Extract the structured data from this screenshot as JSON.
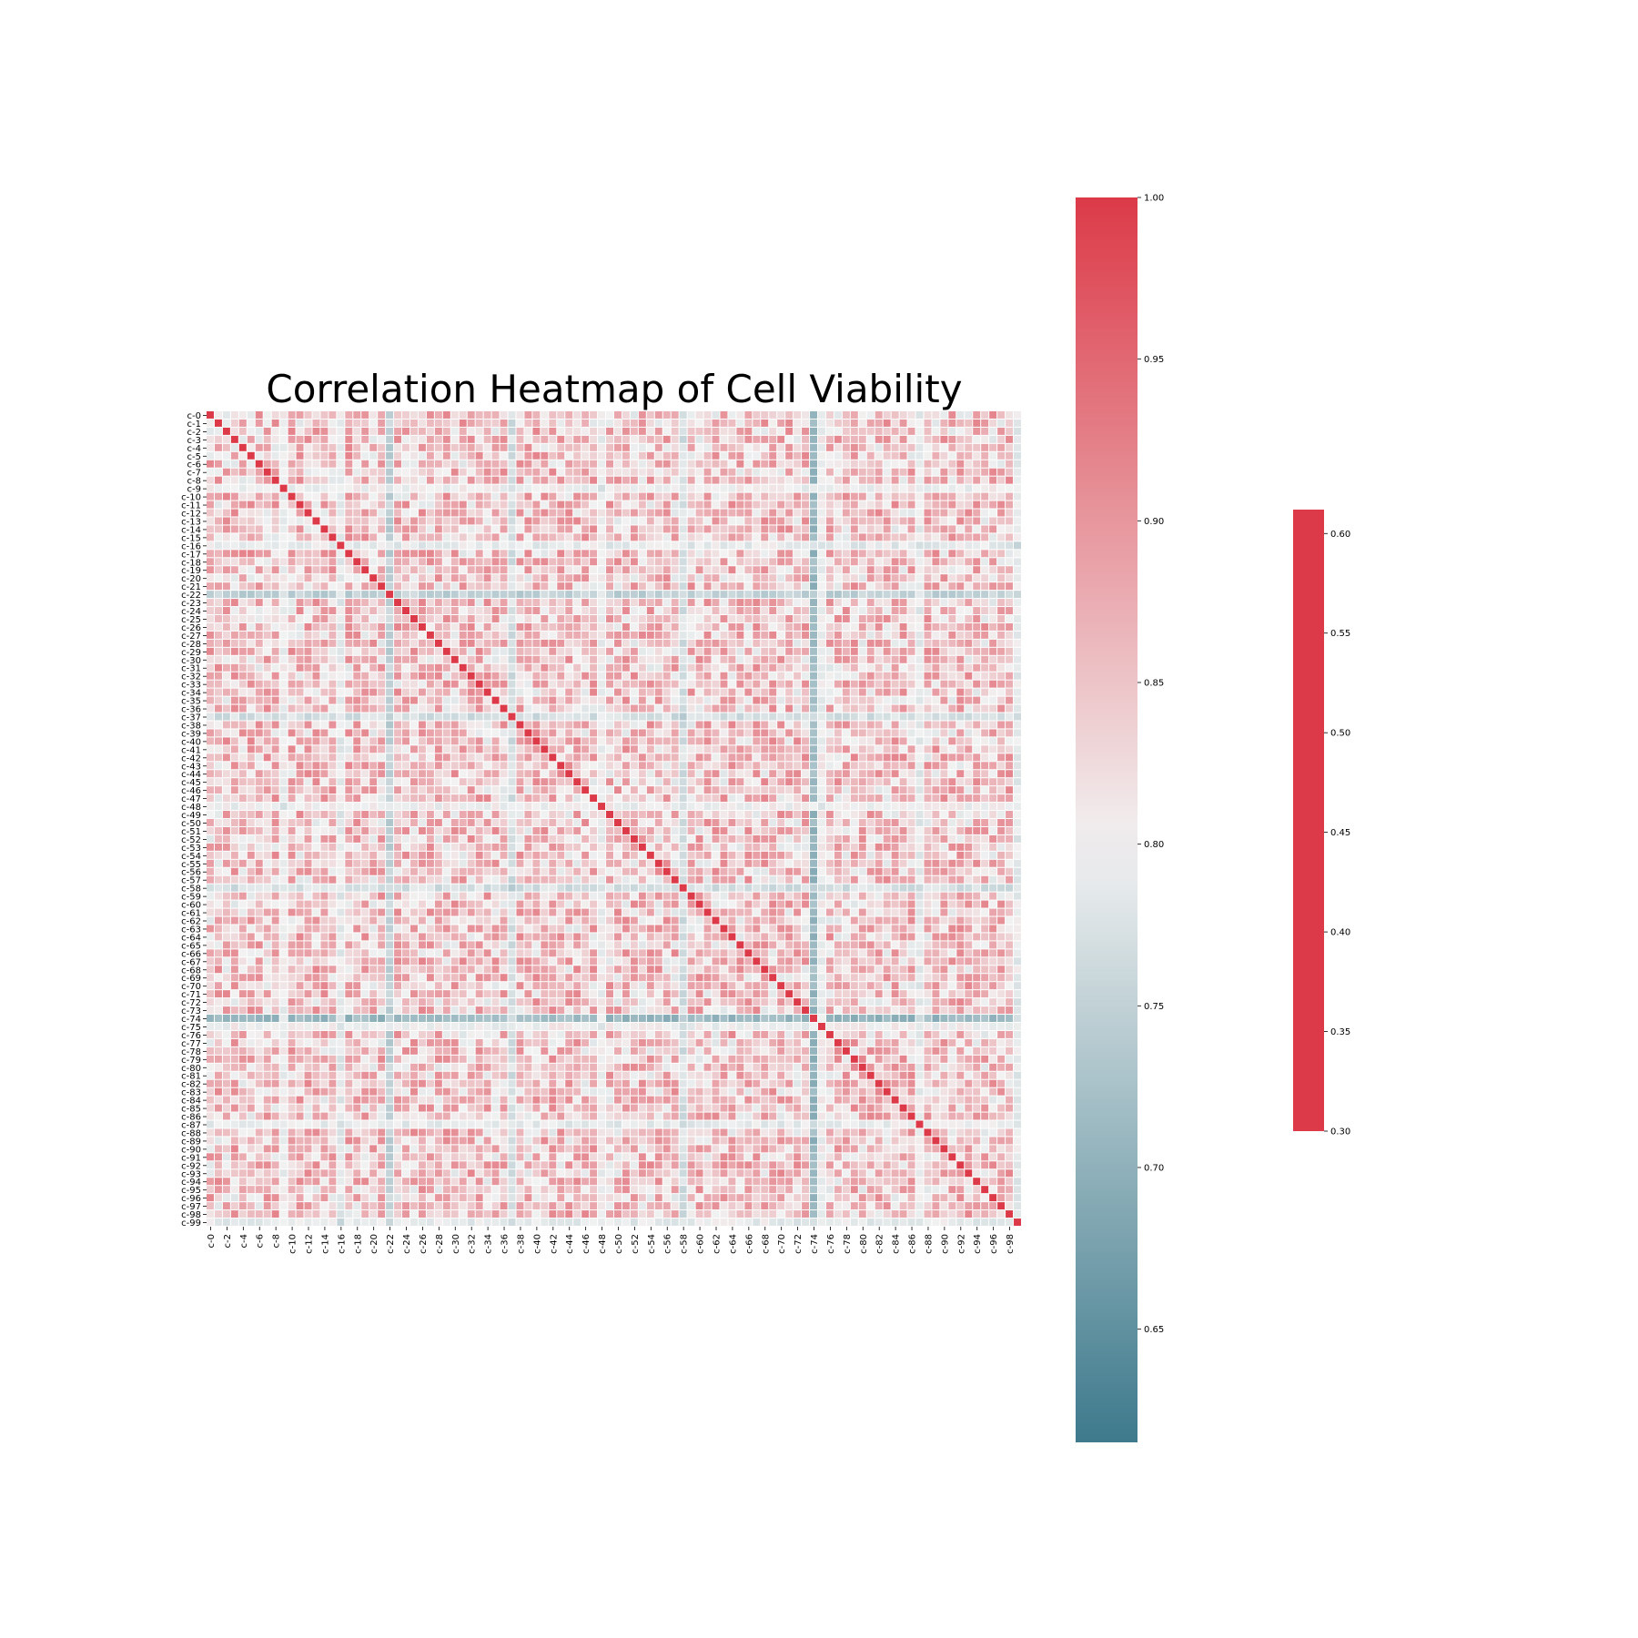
{
  "chart_data": [
    {
      "type": "heatmap",
      "title": "Correlation Heatmap of Cell Viability",
      "label_prefix": "c-",
      "n_variables": 100,
      "diagonal_value": 1.0,
      "typical_off_diagonal_range": [
        0.78,
        0.92
      ],
      "colormap": [
        "#3d7a8c",
        "#f2f2f2",
        "#dc3a48"
      ],
      "value_range": [
        0.615,
        1.0
      ],
      "low_correlation_variables": [
        {
          "name": "c-74",
          "typical_correlation": 0.71
        },
        {
          "name": "c-22",
          "typical_correlation": 0.75
        },
        {
          "name": "c-37",
          "typical_correlation": 0.77
        },
        {
          "name": "c-58",
          "typical_correlation": 0.77
        },
        {
          "name": "c-16",
          "typical_correlation": 0.79
        },
        {
          "name": "c-87",
          "typical_correlation": 0.79
        },
        {
          "name": "c-99",
          "typical_correlation": 0.79
        },
        {
          "name": "c-9",
          "typical_correlation": 0.8
        },
        {
          "name": "c-48",
          "typical_correlation": 0.8
        },
        {
          "name": "c-75",
          "typical_correlation": 0.8
        }
      ],
      "xticklabels": [
        "c-0",
        "c-2",
        "c-4",
        "c-6",
        "c-8",
        "c-10",
        "c-12",
        "c-14",
        "c-16",
        "c-18",
        "c-20",
        "c-22",
        "c-24",
        "c-26",
        "c-28",
        "c-30",
        "c-32",
        "c-34",
        "c-36",
        "c-38",
        "c-40",
        "c-42",
        "c-44",
        "c-46",
        "c-48",
        "c-50",
        "c-52",
        "c-54",
        "c-56",
        "c-58",
        "c-60",
        "c-62",
        "c-64",
        "c-66",
        "c-68",
        "c-70",
        "c-72",
        "c-74",
        "c-76",
        "c-78",
        "c-80",
        "c-82",
        "c-84",
        "c-86",
        "c-88",
        "c-90",
        "c-92",
        "c-94",
        "c-96",
        "c-98"
      ],
      "colorbar": {
        "ticks": [
          {
            "value": 1.0,
            "label": "1.00"
          },
          {
            "value": 0.95,
            "label": "0.95"
          },
          {
            "value": 0.9,
            "label": "0.90"
          },
          {
            "value": 0.85,
            "label": "0.85"
          },
          {
            "value": 0.8,
            "label": "0.80"
          },
          {
            "value": 0.75,
            "label": "0.75"
          },
          {
            "value": 0.7,
            "label": "0.70"
          },
          {
            "value": 0.65,
            "label": "0.65"
          }
        ],
        "range": [
          0.615,
          1.0
        ]
      }
    },
    {
      "type": "colorbar",
      "color": "#dc3a48",
      "range": [
        0.3,
        0.612
      ],
      "ticks": [
        {
          "value": 0.6,
          "label": "0.60"
        },
        {
          "value": 0.55,
          "label": "0.55"
        },
        {
          "value": 0.5,
          "label": "0.50"
        },
        {
          "value": 0.45,
          "label": "0.45"
        },
        {
          "value": 0.4,
          "label": "0.40"
        },
        {
          "value": 0.35,
          "label": "0.35"
        },
        {
          "value": 0.3,
          "label": "0.30"
        }
      ]
    }
  ]
}
